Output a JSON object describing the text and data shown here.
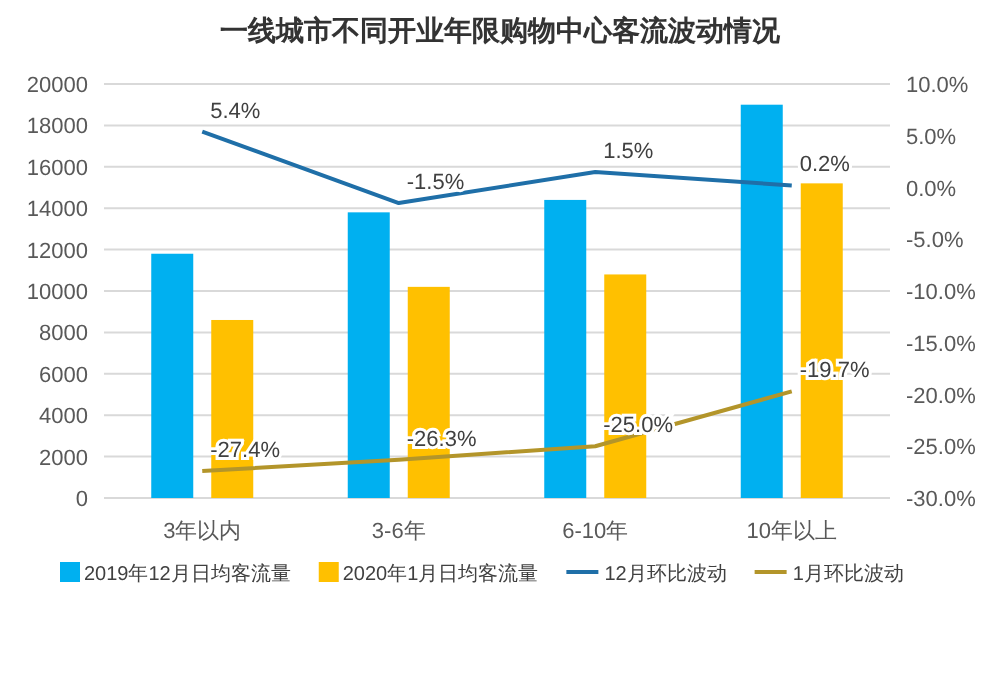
{
  "chart_data": {
    "type": "bar",
    "title": "一线城市不同开业年限购物中心客流波动情况",
    "categories": [
      "3年以内",
      "3-6年",
      "6-10年",
      "10年以上"
    ],
    "series": [
      {
        "name": "2019年12月日均客流量",
        "color": "#00b0f0",
        "values": [
          11800,
          13800,
          14400,
          19000
        ]
      },
      {
        "name": "2020年1月日均客流量",
        "color": "#ffc000",
        "values": [
          8600,
          10200,
          10800,
          15200
        ]
      },
      {
        "name": "12月环比波动",
        "type": "line",
        "axis": "y2",
        "color": "#1f6fa8",
        "values": [
          5.4,
          -1.5,
          1.5,
          0.2
        ],
        "value_labels": [
          "5.4%",
          "-1.5%",
          "1.5%",
          "0.2%"
        ]
      },
      {
        "name": "1月环比波动",
        "type": "line",
        "axis": "y2",
        "color": "#b3952a",
        "values": [
          -27.4,
          -26.3,
          -25.0,
          -19.7
        ],
        "value_labels": [
          "-27.4%",
          "-26.3%",
          "-25.0%",
          "-19.7%"
        ]
      }
    ],
    "ylim": [
      0,
      20000
    ],
    "yticks": [
      0,
      2000,
      4000,
      6000,
      8000,
      10000,
      12000,
      14000,
      16000,
      18000,
      20000
    ],
    "y2lim": [
      -30,
      10
    ],
    "y2ticks": [
      {
        "value": -30,
        "label": "-30.0%"
      },
      {
        "value": -25,
        "label": "-25.0%"
      },
      {
        "value": -20,
        "label": "-20.0%"
      },
      {
        "value": -15,
        "label": "-15.0%"
      },
      {
        "value": -10,
        "label": "-10.0%"
      },
      {
        "value": -5,
        "label": "-5.0%"
      },
      {
        "value": 0,
        "label": "0.0%"
      },
      {
        "value": 5,
        "label": "5.0%"
      },
      {
        "value": 10,
        "label": "10.0%"
      }
    ],
    "grid": "y",
    "legend": "bottom"
  }
}
